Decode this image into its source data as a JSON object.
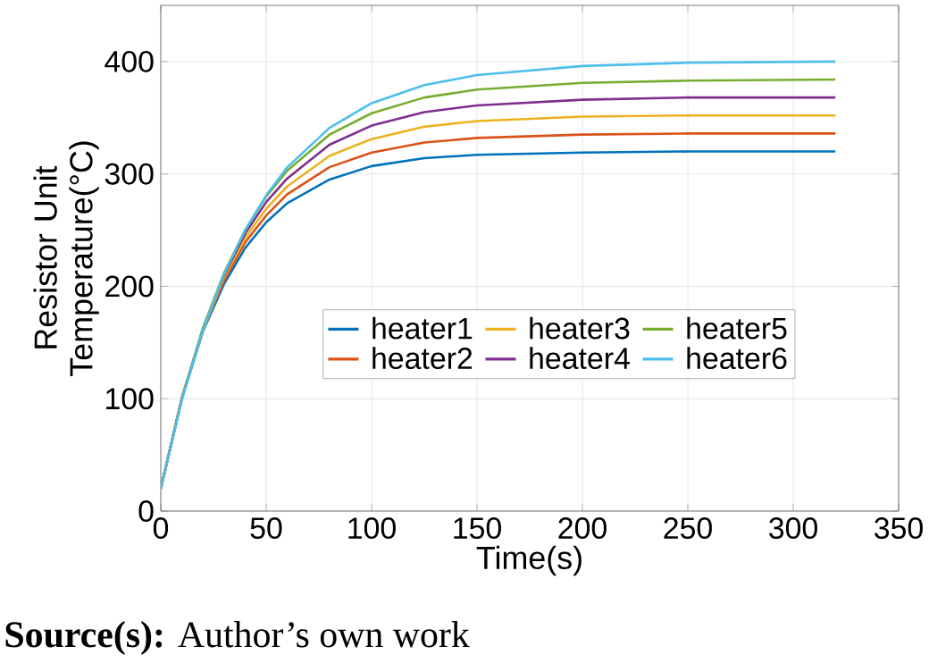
{
  "chart_data": {
    "type": "line",
    "xlabel": "Time(s)",
    "ylabel": "Resistor Unit Temperature(°C)",
    "annotations": [
      "**Source(s):** Author’s own work"
    ],
    "x": [
      0,
      10,
      20,
      30,
      40,
      50,
      60,
      80,
      100,
      125,
      150,
      200,
      250,
      320
    ],
    "series": [
      {
        "name": "heater1",
        "color": "#0072bd",
        "values": [
          20,
          100,
          160,
          202,
          234,
          257,
          274,
          295,
          307,
          314,
          317,
          319,
          320,
          320
        ]
      },
      {
        "name": "heater2",
        "color": "#d95319",
        "values": [
          20,
          101,
          161,
          205,
          239,
          263,
          282,
          306,
          319,
          328,
          332,
          335,
          336,
          336
        ]
      },
      {
        "name": "heater3",
        "color": "#edb120",
        "values": [
          20,
          101,
          161,
          208,
          243,
          269,
          289,
          316,
          331,
          342,
          347,
          351,
          352,
          352
        ]
      },
      {
        "name": "heater4",
        "color": "#7e2f8e",
        "values": [
          20,
          100,
          162,
          210,
          247,
          275,
          296,
          326,
          343,
          355,
          361,
          366,
          368,
          368
        ]
      },
      {
        "name": "heater5",
        "color": "#77ac30",
        "values": [
          20,
          100,
          163,
          212,
          250,
          280,
          303,
          335,
          354,
          368,
          375,
          381,
          383,
          384
        ]
      },
      {
        "name": "heater6",
        "color": "#4dbeee",
        "values": [
          20,
          99,
          161,
          211,
          250,
          281,
          306,
          341,
          363,
          379,
          388,
          396,
          399,
          400
        ]
      }
    ],
    "xlim": [
      0,
      350
    ],
    "ylim": [
      0,
      450
    ],
    "xticks": [
      0,
      50,
      100,
      150,
      200,
      250,
      300,
      350
    ],
    "yticks": [
      0,
      100,
      200,
      300,
      400
    ],
    "grid": true,
    "legend": "right",
    "marker": "none",
    "line_style": "solid"
  }
}
